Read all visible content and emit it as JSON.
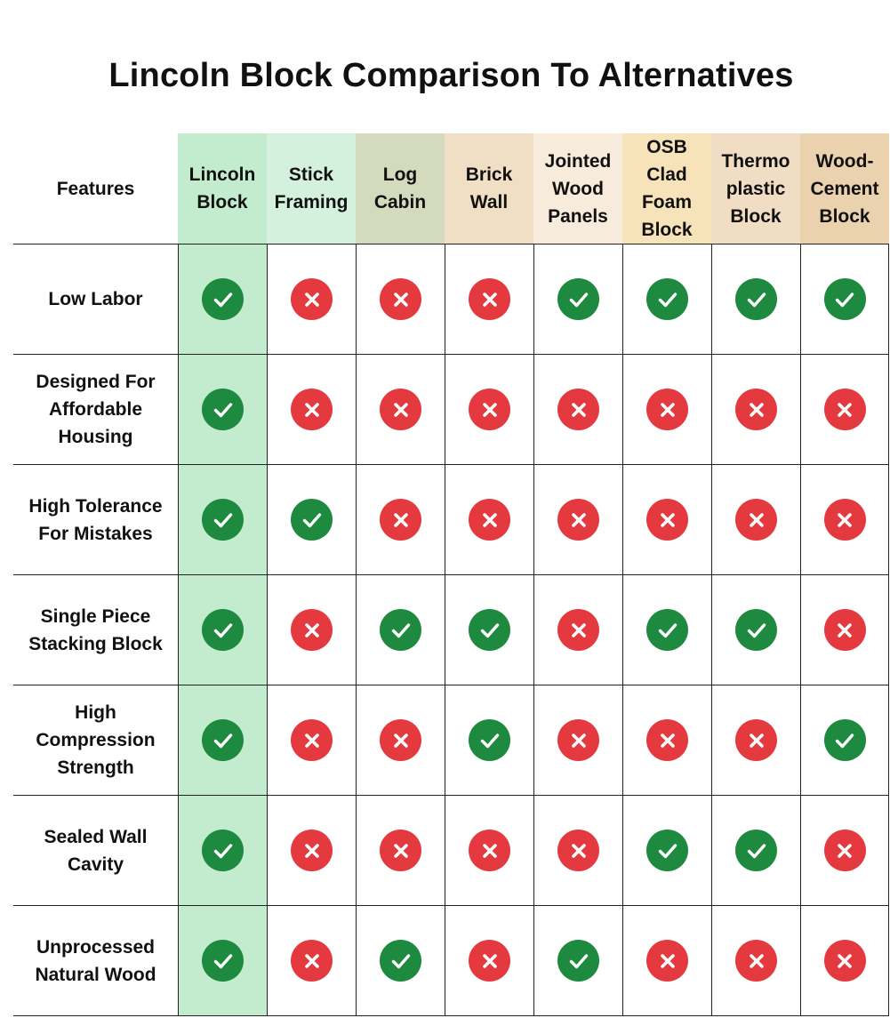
{
  "title": "Lincoln Block Comparison To Alternatives",
  "features_header": "Features",
  "columns": [
    {
      "lines": [
        "Lincoln",
        "Block"
      ],
      "header_color": "#c3ecce",
      "cell_color": "#c3ecce"
    },
    {
      "lines": [
        "Stick",
        "Framing"
      ],
      "header_color": "#d3f1dc",
      "cell_color": "#ffffff"
    },
    {
      "lines": [
        "Log",
        "Cabin"
      ],
      "header_color": "#d4dabd",
      "cell_color": "#ffffff"
    },
    {
      "lines": [
        "Brick",
        "Wall"
      ],
      "header_color": "#f0dfc5",
      "cell_color": "#ffffff"
    },
    {
      "lines": [
        "Jointed",
        "Wood",
        "Panels"
      ],
      "header_color": "#f7ebdc",
      "cell_color": "#ffffff"
    },
    {
      "lines": [
        "OSB",
        "Clad",
        "Foam",
        "Block"
      ],
      "header_color": "#f7e3b9",
      "cell_color": "#ffffff"
    },
    {
      "lines": [
        "Thermo",
        "plastic",
        "Block"
      ],
      "header_color": "#f0ddc3",
      "cell_color": "#ffffff"
    },
    {
      "lines": [
        "Wood-",
        "Cement",
        "Block"
      ],
      "header_color": "#ebd2ae",
      "cell_color": "#ffffff"
    }
  ],
  "rows": [
    {
      "lines": [
        "Low Labor"
      ],
      "values": [
        true,
        false,
        false,
        false,
        true,
        true,
        true,
        true
      ]
    },
    {
      "lines": [
        "Designed For",
        "Affordable",
        "Housing"
      ],
      "values": [
        true,
        false,
        false,
        false,
        false,
        false,
        false,
        false
      ]
    },
    {
      "lines": [
        "High Tolerance",
        "For Mistakes"
      ],
      "values": [
        true,
        true,
        false,
        false,
        false,
        false,
        false,
        false
      ]
    },
    {
      "lines": [
        "Single Piece",
        "Stacking Block"
      ],
      "values": [
        true,
        false,
        true,
        true,
        false,
        true,
        true,
        false
      ]
    },
    {
      "lines": [
        "High",
        "Compression",
        "Strength"
      ],
      "values": [
        true,
        false,
        false,
        true,
        false,
        false,
        false,
        true
      ]
    },
    {
      "lines": [
        "Sealed Wall",
        "Cavity"
      ],
      "values": [
        true,
        false,
        false,
        false,
        false,
        true,
        true,
        false
      ]
    },
    {
      "lines": [
        "Unprocessed",
        "Natural Wood"
      ],
      "values": [
        true,
        false,
        true,
        false,
        true,
        false,
        false,
        false
      ]
    }
  ],
  "icons": {
    "yes": "check-circle-icon",
    "no": "x-circle-icon"
  },
  "colors": {
    "yes": "#1e8a3f",
    "no": "#e4393f"
  }
}
